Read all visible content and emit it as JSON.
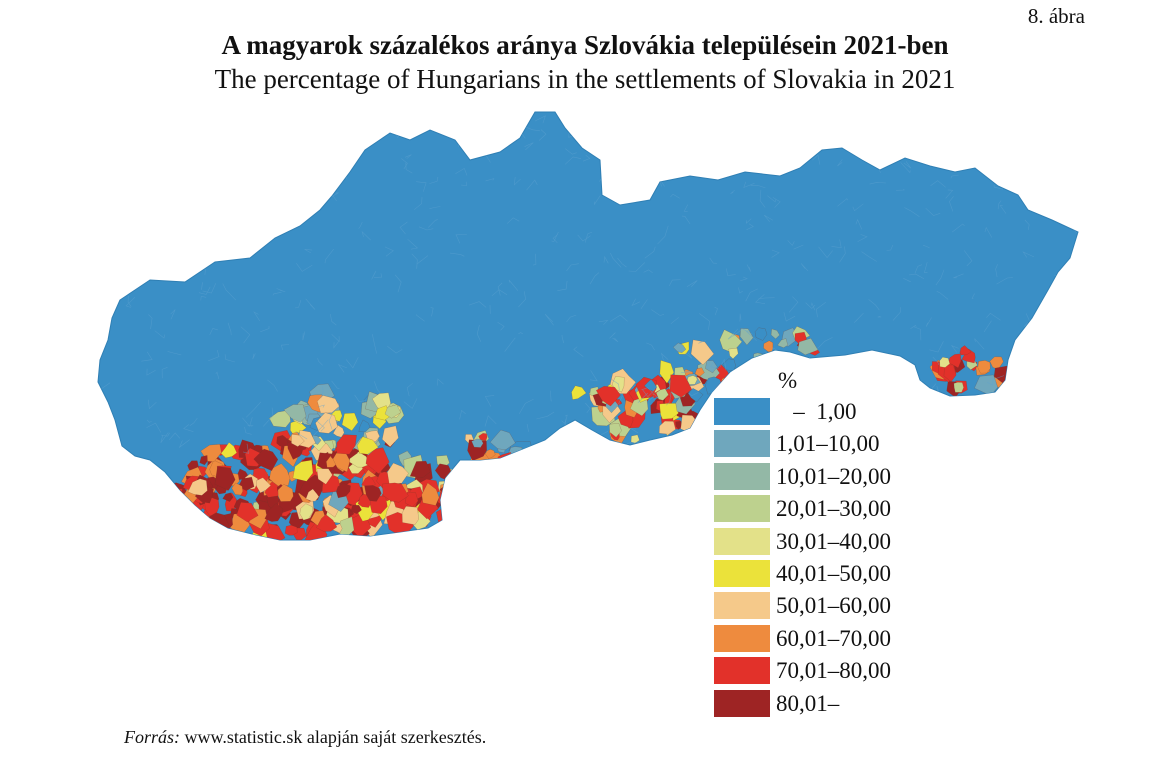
{
  "figure_number": "8. ábra",
  "title_hu": "A magyarok százalékos aránya Szlovákia településein 2021-ben",
  "title_en": "The percentage of Hungarians in the settlements of Slovakia in 2021",
  "map": {
    "region": "Slovakia",
    "fill_colors": {
      "land_base": "#3a8fc6",
      "border_lines": "#5aa0d0"
    }
  },
  "legend": {
    "unit": "%",
    "items": [
      {
        "label": "   –  1,00",
        "color": "#3a8fc6"
      },
      {
        "label": "1,01–10,00",
        "color": "#6fa7bd"
      },
      {
        "label": "10,01–20,00",
        "color": "#93b8a6"
      },
      {
        "label": "20,01–30,00",
        "color": "#bdd18e"
      },
      {
        "label": "30,01–40,00",
        "color": "#e3e189"
      },
      {
        "label": "40,01–50,00",
        "color": "#ebe23a"
      },
      {
        "label": "50,01–60,00",
        "color": "#f5c98a"
      },
      {
        "label": "60,01–70,00",
        "color": "#ee8b3e"
      },
      {
        "label": "70,01–80,00",
        "color": "#e2312a"
      },
      {
        "label": "80,01–",
        "color": "#9e2424"
      }
    ]
  },
  "source": {
    "prefix": "Forrás:",
    "text": " www.statistic.sk alapján saját szerkesztés."
  }
}
